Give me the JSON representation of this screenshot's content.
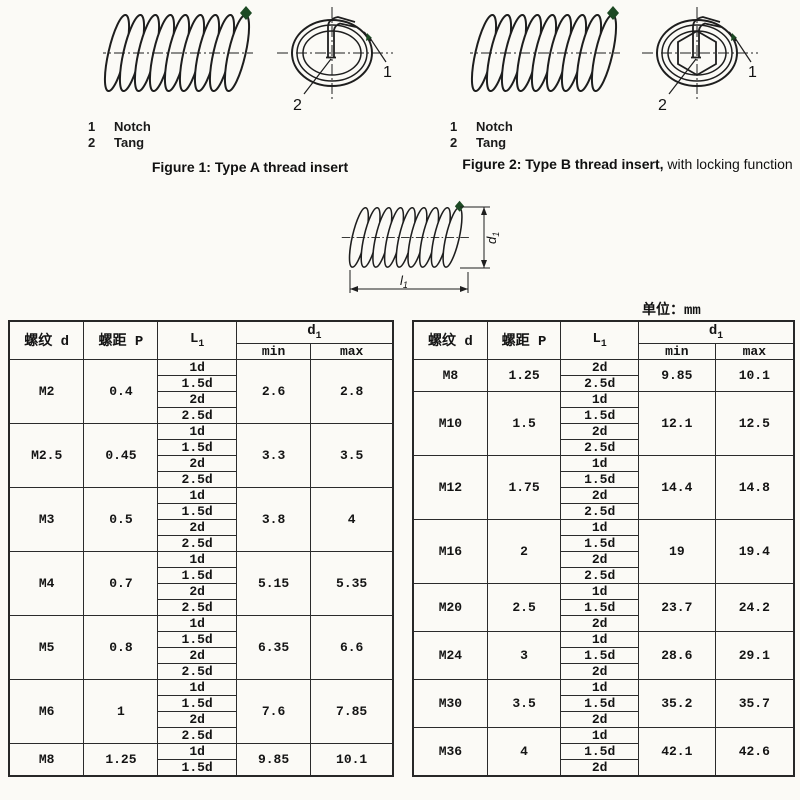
{
  "fig1": {
    "legend": [
      {
        "num": "1",
        "label": "Notch"
      },
      {
        "num": "2",
        "label": "Tang"
      }
    ],
    "caption": "Figure 1: Type A thread insert",
    "callouts": {
      "notch": "1",
      "tang": "2"
    }
  },
  "fig2": {
    "legend": [
      {
        "num": "1",
        "label": "Notch"
      },
      {
        "num": "2",
        "label": "Tang"
      }
    ],
    "caption_bold": "Figure 2: Type B thread insert,",
    "caption_rest": " with locking function",
    "callouts": {
      "notch": "1",
      "tang": "2"
    }
  },
  "dim_fig": {
    "d_letter": "d",
    "d_sub": "1",
    "l_letter": "l",
    "l_sub": "1"
  },
  "units_label": "单位：mm",
  "table_header": {
    "thread": "螺纹 d",
    "pitch": "螺距 P",
    "length_letter": "L",
    "length_sub": "1",
    "d1_letter": "d",
    "d1_sub": "1",
    "min": "min",
    "max": "max"
  },
  "colors": {
    "marker_green": "#1d4a24"
  },
  "tables": {
    "left": [
      {
        "thread": "M2",
        "pitch": "0.4",
        "lengths": [
          "1d",
          "1.5d",
          "2d",
          "2.5d"
        ],
        "min": "2.6",
        "max": "2.8"
      },
      {
        "thread": "M2.5",
        "pitch": "0.45",
        "lengths": [
          "1d",
          "1.5d",
          "2d",
          "2.5d"
        ],
        "min": "3.3",
        "max": "3.5"
      },
      {
        "thread": "M3",
        "pitch": "0.5",
        "lengths": [
          "1d",
          "1.5d",
          "2d",
          "2.5d"
        ],
        "min": "3.8",
        "max": "4"
      },
      {
        "thread": "M4",
        "pitch": "0.7",
        "lengths": [
          "1d",
          "1.5d",
          "2d",
          "2.5d"
        ],
        "min": "5.15",
        "max": "5.35"
      },
      {
        "thread": "M5",
        "pitch": "0.8",
        "lengths": [
          "1d",
          "1.5d",
          "2d",
          "2.5d"
        ],
        "min": "6.35",
        "max": "6.6"
      },
      {
        "thread": "M6",
        "pitch": "1",
        "lengths": [
          "1d",
          "1.5d",
          "2d",
          "2.5d"
        ],
        "min": "7.6",
        "max": "7.85"
      },
      {
        "thread": "M8",
        "pitch": "1.25",
        "lengths": [
          "1d",
          "1.5d"
        ],
        "min": "9.85",
        "max": "10.1"
      }
    ],
    "right": [
      {
        "thread": "M8",
        "pitch": "1.25",
        "lengths": [
          "2d",
          "2.5d"
        ],
        "min": "9.85",
        "max": "10.1"
      },
      {
        "thread": "M10",
        "pitch": "1.5",
        "lengths": [
          "1d",
          "1.5d",
          "2d",
          "2.5d"
        ],
        "min": "12.1",
        "max": "12.5"
      },
      {
        "thread": "M12",
        "pitch": "1.75",
        "lengths": [
          "1d",
          "1.5d",
          "2d",
          "2.5d"
        ],
        "min": "14.4",
        "max": "14.8"
      },
      {
        "thread": "M16",
        "pitch": "2",
        "lengths": [
          "1d",
          "1.5d",
          "2d",
          "2.5d"
        ],
        "min": "19",
        "max": "19.4"
      },
      {
        "thread": "M20",
        "pitch": "2.5",
        "lengths": [
          "1d",
          "1.5d",
          "2d"
        ],
        "min": "23.7",
        "max": "24.2"
      },
      {
        "thread": "M24",
        "pitch": "3",
        "lengths": [
          "1d",
          "1.5d",
          "2d"
        ],
        "min": "28.6",
        "max": "29.1"
      },
      {
        "thread": "M30",
        "pitch": "3.5",
        "lengths": [
          "1d",
          "1.5d",
          "2d"
        ],
        "min": "35.2",
        "max": "35.7"
      },
      {
        "thread": "M36",
        "pitch": "4",
        "lengths": [
          "1d",
          "1.5d",
          "2d"
        ],
        "min": "42.1",
        "max": "42.6"
      }
    ]
  }
}
